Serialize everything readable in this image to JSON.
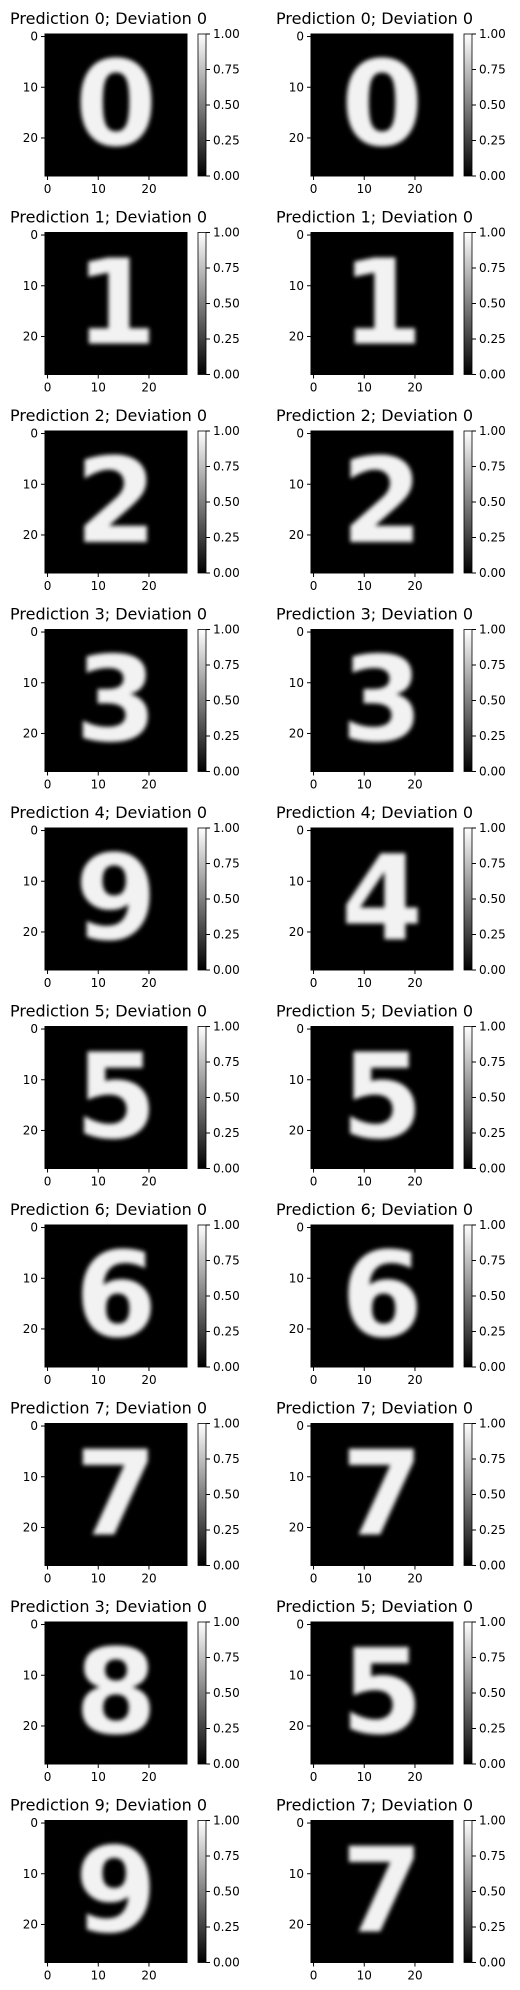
{
  "colorbar": {
    "ticks": [
      "0.00",
      "0.25",
      "0.50",
      "0.75",
      "1.00"
    ],
    "range": [
      0,
      1
    ],
    "cmap": "gray"
  },
  "axis_ticks": {
    "x": [
      "0",
      "10",
      "20"
    ],
    "y": [
      "0",
      "10",
      "20"
    ],
    "tick_values": [
      0,
      10,
      20
    ],
    "image_size": 28
  },
  "chart_data": {
    "type": "heatmap",
    "rows": 10,
    "cols": 2,
    "panels": [
      {
        "row": 0,
        "col": 0,
        "title": "Prediction 0; Deviation 0",
        "prediction": 0,
        "deviation": 0,
        "glyph": "0"
      },
      {
        "row": 0,
        "col": 1,
        "title": "Prediction 0; Deviation 0",
        "prediction": 0,
        "deviation": 0,
        "glyph": "0"
      },
      {
        "row": 1,
        "col": 0,
        "title": "Prediction 1; Deviation 0",
        "prediction": 1,
        "deviation": 0,
        "glyph": "1"
      },
      {
        "row": 1,
        "col": 1,
        "title": "Prediction 1; Deviation 0",
        "prediction": 1,
        "deviation": 0,
        "glyph": "1"
      },
      {
        "row": 2,
        "col": 0,
        "title": "Prediction 2; Deviation 0",
        "prediction": 2,
        "deviation": 0,
        "glyph": "2"
      },
      {
        "row": 2,
        "col": 1,
        "title": "Prediction 2; Deviation 0",
        "prediction": 2,
        "deviation": 0,
        "glyph": "2"
      },
      {
        "row": 3,
        "col": 0,
        "title": "Prediction 3; Deviation 0",
        "prediction": 3,
        "deviation": 0,
        "glyph": "3"
      },
      {
        "row": 3,
        "col": 1,
        "title": "Prediction 3; Deviation 0",
        "prediction": 3,
        "deviation": 0,
        "glyph": "3"
      },
      {
        "row": 4,
        "col": 0,
        "title": "Prediction 4; Deviation 0",
        "prediction": 4,
        "deviation": 0,
        "glyph": "9"
      },
      {
        "row": 4,
        "col": 1,
        "title": "Prediction 4; Deviation 0",
        "prediction": 4,
        "deviation": 0,
        "glyph": "4"
      },
      {
        "row": 5,
        "col": 0,
        "title": "Prediction 5; Deviation 0",
        "prediction": 5,
        "deviation": 0,
        "glyph": "5"
      },
      {
        "row": 5,
        "col": 1,
        "title": "Prediction 5; Deviation 0",
        "prediction": 5,
        "deviation": 0,
        "glyph": "5"
      },
      {
        "row": 6,
        "col": 0,
        "title": "Prediction 6; Deviation 0",
        "prediction": 6,
        "deviation": 0,
        "glyph": "6"
      },
      {
        "row": 6,
        "col": 1,
        "title": "Prediction 6; Deviation 0",
        "prediction": 6,
        "deviation": 0,
        "glyph": "6"
      },
      {
        "row": 7,
        "col": 0,
        "title": "Prediction 7; Deviation 0",
        "prediction": 7,
        "deviation": 0,
        "glyph": "7"
      },
      {
        "row": 7,
        "col": 1,
        "title": "Prediction 7; Deviation 0",
        "prediction": 7,
        "deviation": 0,
        "glyph": "7"
      },
      {
        "row": 8,
        "col": 0,
        "title": "Prediction 3; Deviation 0",
        "prediction": 3,
        "deviation": 0,
        "glyph": "8"
      },
      {
        "row": 8,
        "col": 1,
        "title": "Prediction 5; Deviation 0",
        "prediction": 5,
        "deviation": 0,
        "glyph": "5"
      },
      {
        "row": 9,
        "col": 0,
        "title": "Prediction 9; Deviation 0",
        "prediction": 9,
        "deviation": 0,
        "glyph": "9"
      },
      {
        "row": 9,
        "col": 1,
        "title": "Prediction 7; Deviation 0",
        "prediction": 7,
        "deviation": 0,
        "glyph": "7"
      }
    ]
  }
}
